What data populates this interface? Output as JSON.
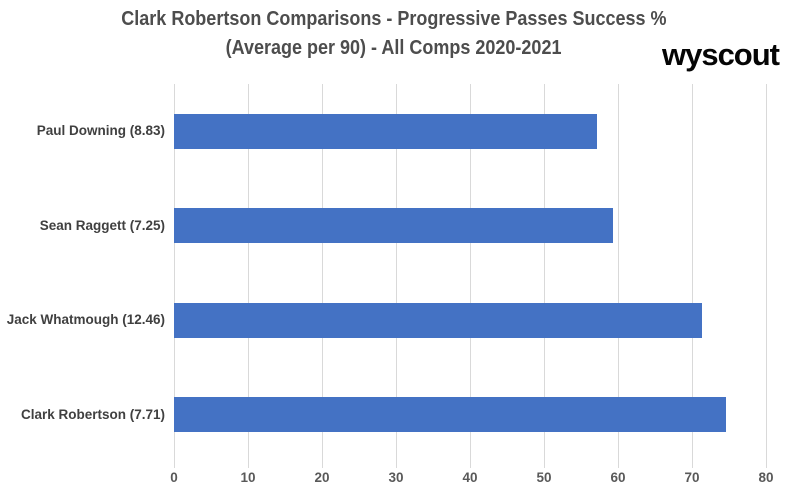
{
  "branding": {
    "logo_text": "wyscout"
  },
  "chart_data": {
    "type": "bar",
    "orientation": "horizontal",
    "title": {
      "line1": "Clark Robertson Comparisons - Progressive Passes Success %",
      "line2": "(Average per 90) - All Comps 2020-2021"
    },
    "categories": [
      "Paul Downing (8.83)",
      "Sean Raggett (7.25)",
      "Jack Whatmough (12.46)",
      "Clark Robertson (7.71)"
    ],
    "values": [
      57.2,
      59.3,
      71.3,
      74.6
    ],
    "xlabel": "",
    "ylabel": "",
    "xlim": [
      0,
      80
    ],
    "xticks": [
      0,
      10,
      20,
      30,
      40,
      50,
      60,
      70,
      80
    ],
    "grid": "vertical",
    "legend": "none",
    "colors": {
      "bar": "#4472C4",
      "gridline": "#D9D9D9",
      "title_text": "#4D4D4D",
      "category_label": "#404040",
      "tick_label": "#595959",
      "logo_text": "#050505",
      "background": "#FFFFFF"
    }
  }
}
